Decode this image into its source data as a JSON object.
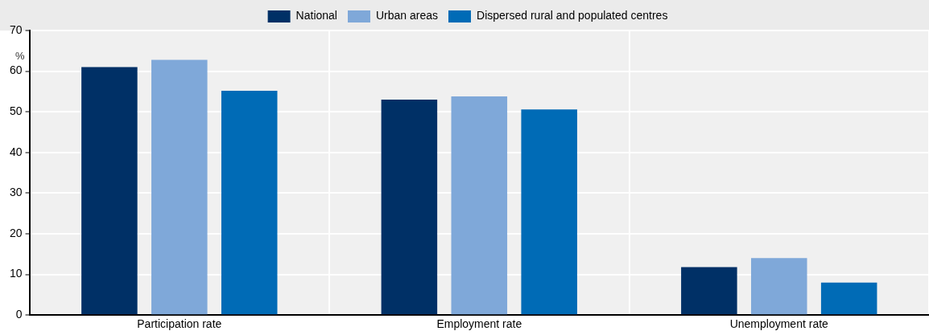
{
  "chart_data": {
    "type": "bar",
    "ylabel": "%",
    "categories": [
      "Participation rate",
      "Employment rate",
      "Unemployment rate"
    ],
    "series": [
      {
        "name": "National",
        "color": "#003066",
        "values": [
          61.0,
          53.0,
          11.8
        ]
      },
      {
        "name": "Urban areas",
        "color": "#7fa8d9",
        "values": [
          62.8,
          53.8,
          14.0
        ]
      },
      {
        "name": "Dispersed rural and populated centres",
        "color": "#006bb6",
        "values": [
          55.2,
          50.6,
          8.0
        ]
      }
    ],
    "ylim": [
      0,
      70
    ],
    "yticks": [
      0,
      10,
      20,
      30,
      40,
      50,
      60,
      70
    ],
    "grid": true,
    "legend": "top"
  }
}
